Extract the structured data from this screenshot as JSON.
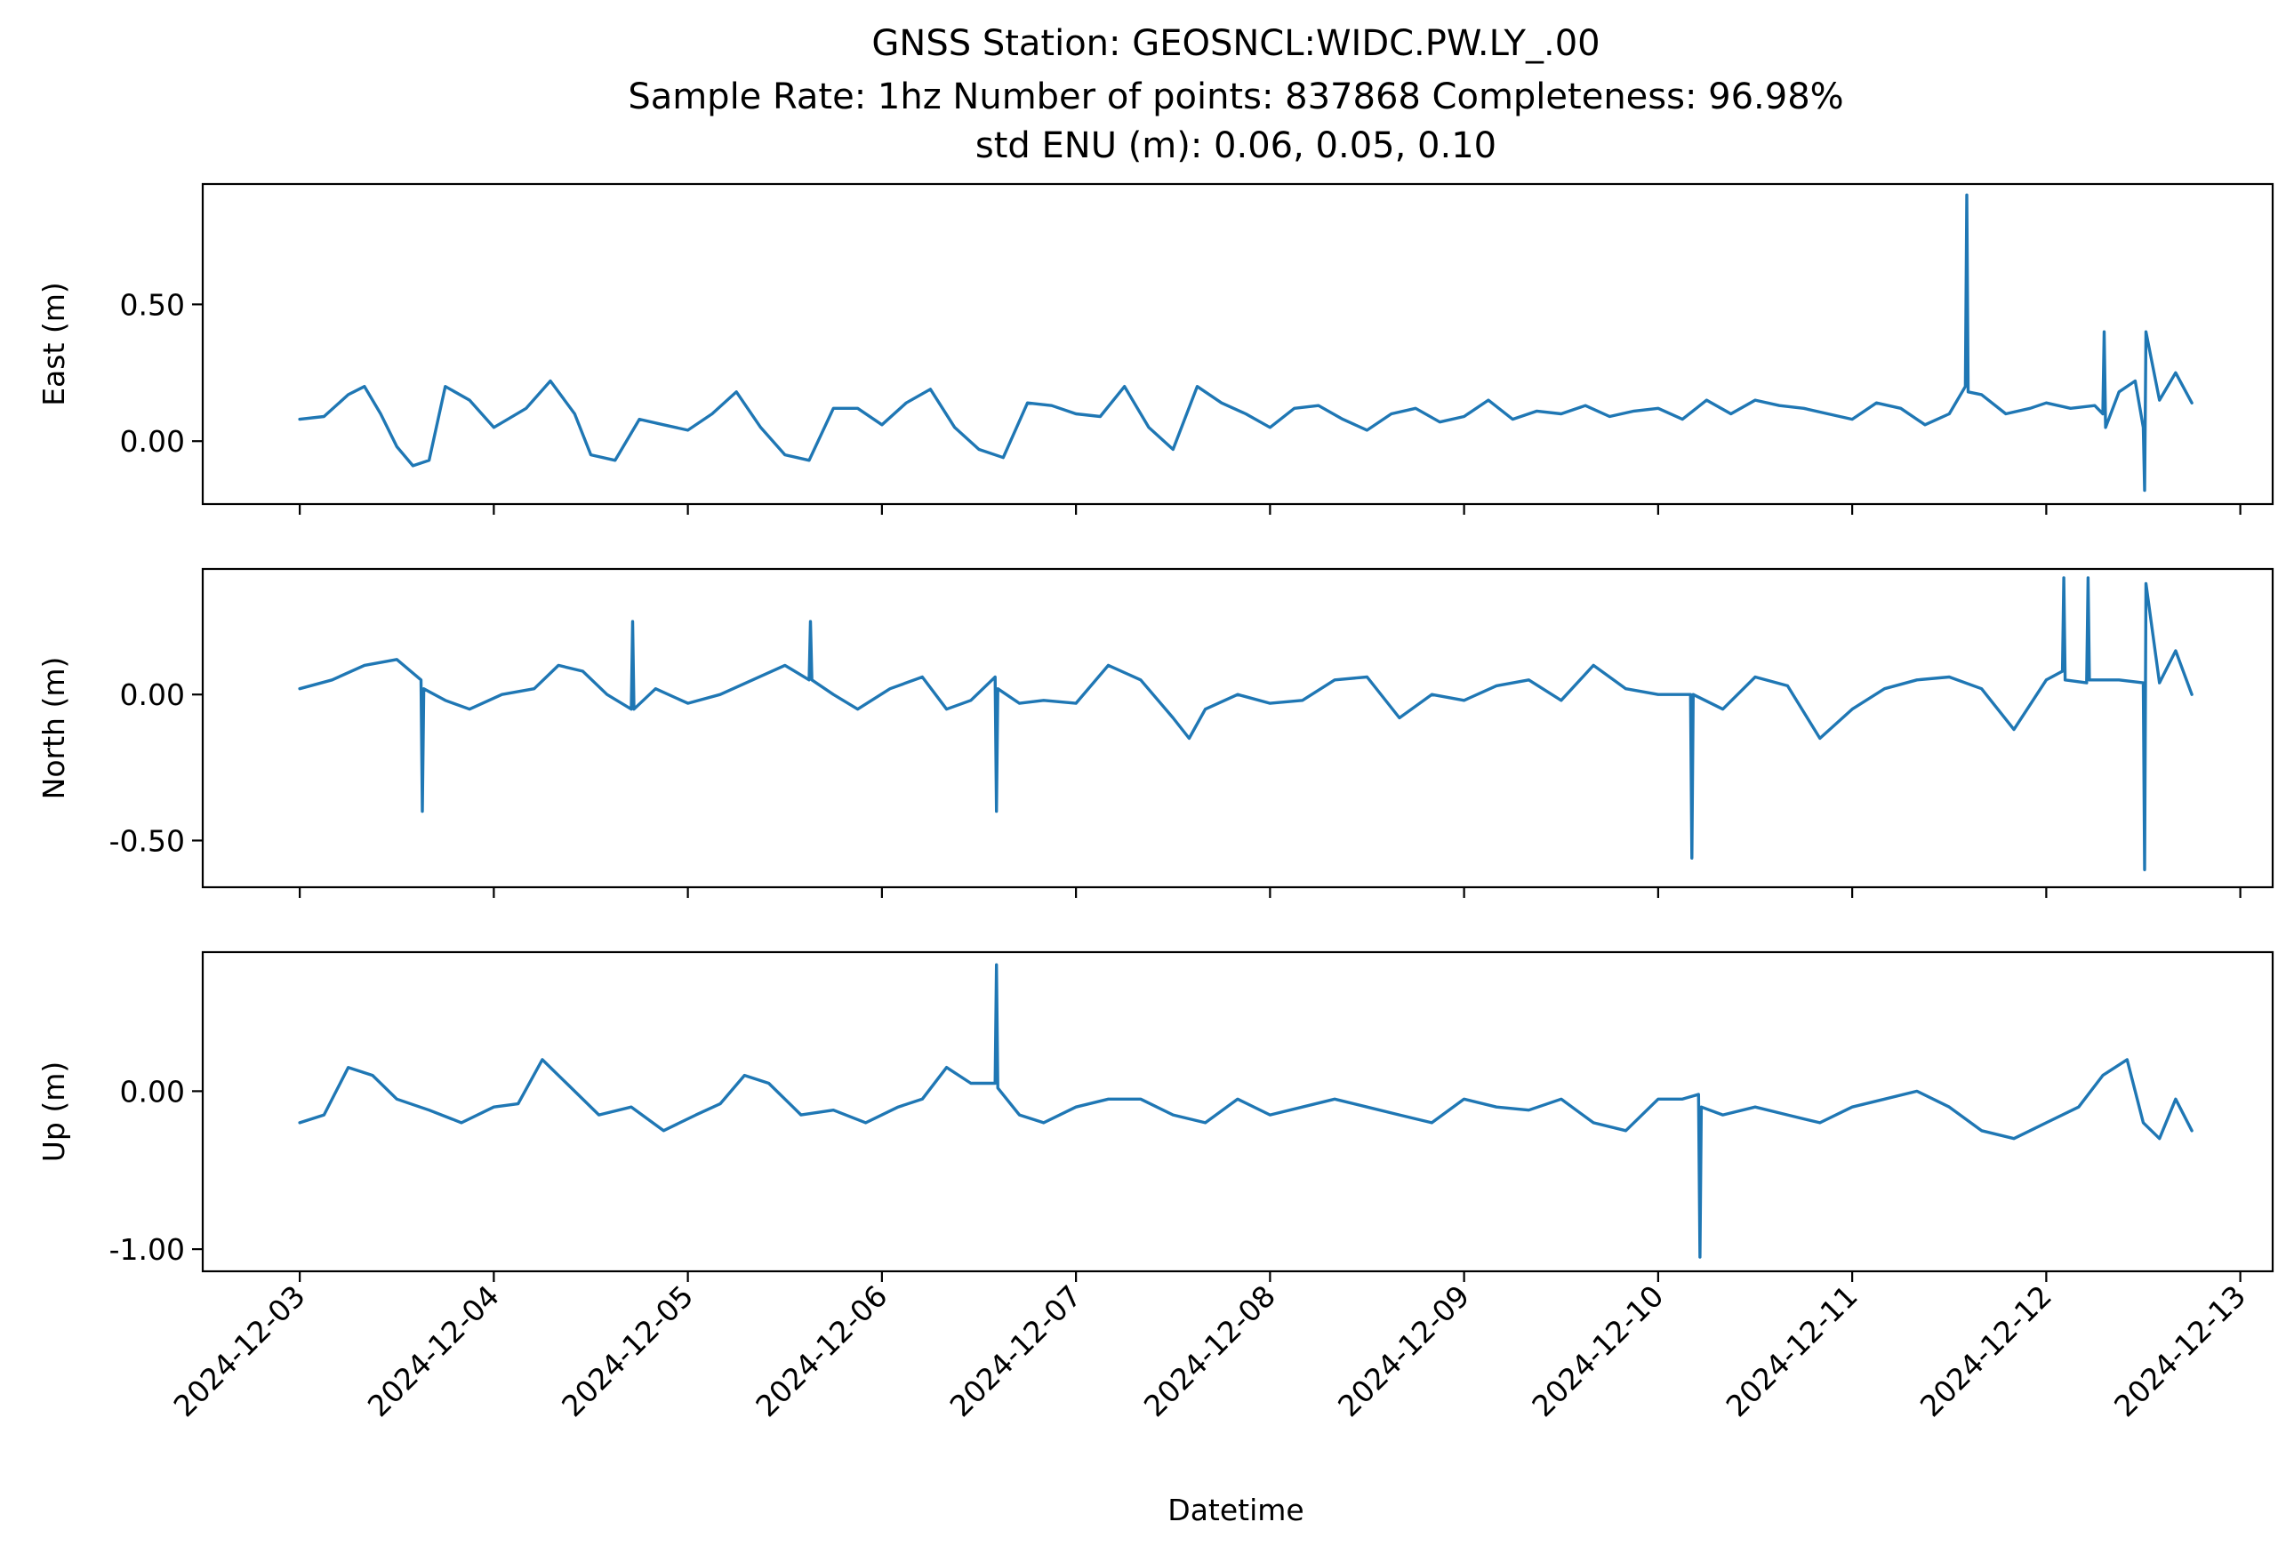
{
  "figure": {
    "title_lines": [
      "GNSS Station: GEOSNCL:WIDC.PW.LY_.00",
      "Sample Rate: 1hz   Number of points: 837868    Completeness:  96.98%",
      "std ENU (m):  0.06, 0.05, 0.10"
    ],
    "xlabel": "Datetime",
    "line_color": "#1f77b4"
  },
  "chart_data": [
    {
      "type": "line",
      "ylabel": "East (m)",
      "ylim": [
        -0.23,
        0.94
      ],
      "yticks": [
        0.0,
        0.5
      ],
      "ytick_labels": [
        "0.00",
        "0.50"
      ],
      "xlim": [
        "2024-12-02T12:00",
        "2024-12-13T04:00"
      ],
      "xticks": [
        "2024-12-03",
        "2024-12-04",
        "2024-12-05",
        "2024-12-06",
        "2024-12-07",
        "2024-12-08",
        "2024-12-09",
        "2024-12-10",
        "2024-12-11",
        "2024-12-12",
        "2024-12-13"
      ],
      "series": [
        {
          "x": [
            "2024-12-03T00:00",
            "2024-12-03T03:00",
            "2024-12-03T06:00",
            "2024-12-03T08:00",
            "2024-12-03T10:00",
            "2024-12-03T12:00",
            "2024-12-03T14:00",
            "2024-12-03T16:00",
            "2024-12-03T18:00",
            "2024-12-03T21:00",
            "2024-12-04T00:00",
            "2024-12-04T04:00",
            "2024-12-04T07:00",
            "2024-12-04T10:00",
            "2024-12-04T12:00",
            "2024-12-04T15:00",
            "2024-12-04T18:00",
            "2024-12-04T21:00",
            "2024-12-05T00:00",
            "2024-12-05T03:00",
            "2024-12-05T06:00",
            "2024-12-05T09:00",
            "2024-12-05T12:00",
            "2024-12-05T15:00",
            "2024-12-05T18:00",
            "2024-12-05T21:00",
            "2024-12-06T00:00",
            "2024-12-06T03:00",
            "2024-12-06T06:00",
            "2024-12-06T09:00",
            "2024-12-06T12:00",
            "2024-12-06T15:00",
            "2024-12-06T18:00",
            "2024-12-06T21:00",
            "2024-12-07T00:00",
            "2024-12-07T03:00",
            "2024-12-07T06:00",
            "2024-12-07T09:00",
            "2024-12-07T12:00",
            "2024-12-07T15:00",
            "2024-12-07T18:00",
            "2024-12-07T21:00",
            "2024-12-08T00:00",
            "2024-12-08T03:00",
            "2024-12-08T06:00",
            "2024-12-08T09:00",
            "2024-12-08T12:00",
            "2024-12-08T15:00",
            "2024-12-08T18:00",
            "2024-12-08T21:00",
            "2024-12-09T00:00",
            "2024-12-09T03:00",
            "2024-12-09T06:00",
            "2024-12-09T09:00",
            "2024-12-09T12:00",
            "2024-12-09T15:00",
            "2024-12-09T18:00",
            "2024-12-09T21:00",
            "2024-12-10T00:00",
            "2024-12-10T03:00",
            "2024-12-10T06:00",
            "2024-12-10T09:00",
            "2024-12-10T12:00",
            "2024-12-10T15:00",
            "2024-12-10T18:00",
            "2024-12-10T21:00",
            "2024-12-11T00:00",
            "2024-12-11T03:00",
            "2024-12-11T06:00",
            "2024-12-11T09:00",
            "2024-12-11T12:00",
            "2024-12-11T14:00",
            "2024-12-11T14:10",
            "2024-12-11T14:20",
            "2024-12-11T16:00",
            "2024-12-11T19:00",
            "2024-12-11T22:00",
            "2024-12-12T00:00",
            "2024-12-12T03:00",
            "2024-12-12T06:00",
            "2024-12-12T07:00",
            "2024-12-12T07:10",
            "2024-12-12T07:20",
            "2024-12-12T09:00",
            "2024-12-12T11:00",
            "2024-12-12T12:00",
            "2024-12-12T12:10",
            "2024-12-12T12:20",
            "2024-12-12T14:00",
            "2024-12-12T16:00",
            "2024-12-12T18:00"
          ],
          "y": [
            0.08,
            0.09,
            0.17,
            0.2,
            0.1,
            -0.02,
            -0.09,
            -0.07,
            0.2,
            0.15,
            0.05,
            0.12,
            0.22,
            0.1,
            -0.05,
            -0.07,
            0.08,
            0.06,
            0.04,
            0.1,
            0.18,
            0.05,
            -0.05,
            -0.07,
            0.12,
            0.12,
            0.06,
            0.14,
            0.19,
            0.05,
            -0.03,
            -0.06,
            0.14,
            0.13,
            0.1,
            0.09,
            0.2,
            0.05,
            -0.03,
            0.2,
            0.14,
            0.1,
            0.05,
            0.12,
            0.13,
            0.08,
            0.04,
            0.1,
            0.12,
            0.07,
            0.09,
            0.15,
            0.08,
            0.11,
            0.1,
            0.13,
            0.09,
            0.11,
            0.12,
            0.08,
            0.15,
            0.1,
            0.15,
            0.13,
            0.12,
            0.1,
            0.08,
            0.14,
            0.12,
            0.06,
            0.1,
            0.2,
            0.9,
            0.18,
            0.17,
            0.1,
            0.12,
            0.14,
            0.12,
            0.13,
            0.1,
            0.4,
            0.05,
            0.18,
            0.22,
            0.05,
            -0.18,
            0.4,
            0.15,
            0.25,
            0.14
          ]
        }
      ]
    },
    {
      "type": "line",
      "ylabel": "North (m)",
      "ylim": [
        -0.66,
        0.43
      ],
      "yticks": [
        -0.5,
        0.0
      ],
      "ytick_labels": [
        "-0.50",
        "0.00"
      ],
      "xlim": [
        "2024-12-02T12:00",
        "2024-12-13T04:00"
      ],
      "xticks": [
        "2024-12-03",
        "2024-12-04",
        "2024-12-05",
        "2024-12-06",
        "2024-12-07",
        "2024-12-08",
        "2024-12-09",
        "2024-12-10",
        "2024-12-11",
        "2024-12-12",
        "2024-12-13"
      ],
      "series": [
        {
          "x": [
            "2024-12-03T00:00",
            "2024-12-03T04:00",
            "2024-12-03T08:00",
            "2024-12-03T12:00",
            "2024-12-03T15:00",
            "2024-12-03T15:10",
            "2024-12-03T15:20",
            "2024-12-03T18:00",
            "2024-12-03T21:00",
            "2024-12-04T01:00",
            "2024-12-04T05:00",
            "2024-12-04T08:00",
            "2024-12-04T11:00",
            "2024-12-04T14:00",
            "2024-12-04T17:00",
            "2024-12-04T17:10",
            "2024-12-04T17:20",
            "2024-12-04T20:00",
            "2024-12-05T00:00",
            "2024-12-05T04:00",
            "2024-12-05T08:00",
            "2024-12-05T12:00",
            "2024-12-05T15:00",
            "2024-12-05T15:10",
            "2024-12-05T15:20",
            "2024-12-05T18:00",
            "2024-12-05T21:00",
            "2024-12-06T01:00",
            "2024-12-06T05:00",
            "2024-12-06T08:00",
            "2024-12-06T11:00",
            "2024-12-06T14:00",
            "2024-12-06T14:10",
            "2024-12-06T14:20",
            "2024-12-06T17:00",
            "2024-12-06T20:00",
            "2024-12-07T00:00",
            "2024-12-07T04:00",
            "2024-12-07T08:00",
            "2024-12-07T12:00",
            "2024-12-07T14:00",
            "2024-12-07T16:00",
            "2024-12-07T20:00",
            "2024-12-08T00:00",
            "2024-12-08T04:00",
            "2024-12-08T08:00",
            "2024-12-08T12:00",
            "2024-12-08T16:00",
            "2024-12-08T20:00",
            "2024-12-09T00:00",
            "2024-12-09T04:00",
            "2024-12-09T08:00",
            "2024-12-09T12:00",
            "2024-12-09T16:00",
            "2024-12-09T20:00",
            "2024-12-10T00:00",
            "2024-12-10T04:00",
            "2024-12-10T04:10",
            "2024-12-10T04:20",
            "2024-12-10T08:00",
            "2024-12-10T12:00",
            "2024-12-10T16:00",
            "2024-12-10T20:00",
            "2024-12-11T00:00",
            "2024-12-11T04:00",
            "2024-12-11T08:00",
            "2024-12-11T12:00",
            "2024-12-11T16:00",
            "2024-12-11T20:00",
            "2024-12-12T00:00",
            "2024-12-12T02:00",
            "2024-12-12T02:10",
            "2024-12-12T02:20",
            "2024-12-12T05:00",
            "2024-12-12T05:10",
            "2024-12-12T05:20",
            "2024-12-12T09:00",
            "2024-12-12T12:00",
            "2024-12-12T12:10",
            "2024-12-12T12:20",
            "2024-12-12T14:00",
            "2024-12-12T16:00",
            "2024-12-12T18:00"
          ],
          "y": [
            0.02,
            0.05,
            0.1,
            0.12,
            0.05,
            -0.4,
            0.02,
            -0.02,
            -0.05,
            0.0,
            0.02,
            0.1,
            0.08,
            0.0,
            -0.05,
            0.25,
            -0.05,
            0.02,
            -0.03,
            0.0,
            0.05,
            0.1,
            0.05,
            0.25,
            0.05,
            0.0,
            -0.05,
            0.02,
            0.06,
            -0.05,
            -0.02,
            0.06,
            -0.4,
            0.02,
            -0.03,
            -0.02,
            -0.03,
            0.1,
            0.05,
            -0.08,
            -0.15,
            -0.05,
            0.0,
            -0.03,
            -0.02,
            0.05,
            0.06,
            -0.08,
            0.0,
            -0.02,
            0.03,
            0.05,
            -0.02,
            0.1,
            0.02,
            0.0,
            0.0,
            -0.56,
            0.0,
            -0.05,
            0.06,
            0.03,
            -0.15,
            -0.05,
            0.02,
            0.05,
            0.06,
            0.02,
            -0.12,
            0.05,
            0.08,
            0.4,
            0.05,
            0.04,
            0.4,
            0.05,
            0.05,
            0.04,
            -0.6,
            0.38,
            0.04,
            0.15,
            0.0
          ]
        }
      ]
    },
    {
      "type": "line",
      "ylabel": "Up (m)",
      "ylim": [
        -1.14,
        0.88
      ],
      "yticks": [
        -1.0,
        0.0
      ],
      "ytick_labels": [
        "-1.00",
        "0.00"
      ],
      "xlim": [
        "2024-12-02T12:00",
        "2024-12-13T04:00"
      ],
      "xticks": [
        "2024-12-03",
        "2024-12-04",
        "2024-12-05",
        "2024-12-06",
        "2024-12-07",
        "2024-12-08",
        "2024-12-09",
        "2024-12-10",
        "2024-12-11",
        "2024-12-12",
        "2024-12-13"
      ],
      "series": [
        {
          "x": [
            "2024-12-03T00:00",
            "2024-12-03T03:00",
            "2024-12-03T06:00",
            "2024-12-03T09:00",
            "2024-12-03T12:00",
            "2024-12-03T16:00",
            "2024-12-03T20:00",
            "2024-12-04T00:00",
            "2024-12-04T03:00",
            "2024-12-04T06:00",
            "2024-12-04T09:00",
            "2024-12-04T13:00",
            "2024-12-04T17:00",
            "2024-12-04T21:00",
            "2024-12-05T01:00",
            "2024-12-05T04:00",
            "2024-12-05T07:00",
            "2024-12-05T10:00",
            "2024-12-05T14:00",
            "2024-12-05T18:00",
            "2024-12-05T22:00",
            "2024-12-06T02:00",
            "2024-12-06T05:00",
            "2024-12-06T08:00",
            "2024-12-06T11:00",
            "2024-12-06T14:00",
            "2024-12-06T14:10",
            "2024-12-06T14:20",
            "2024-12-06T17:00",
            "2024-12-06T20:00",
            "2024-12-07T00:00",
            "2024-12-07T04:00",
            "2024-12-07T08:00",
            "2024-12-07T12:00",
            "2024-12-07T16:00",
            "2024-12-07T20:00",
            "2024-12-08T00:00",
            "2024-12-08T04:00",
            "2024-12-08T08:00",
            "2024-12-08T12:00",
            "2024-12-08T16:00",
            "2024-12-08T20:00",
            "2024-12-09T00:00",
            "2024-12-09T04:00",
            "2024-12-09T08:00",
            "2024-12-09T12:00",
            "2024-12-09T16:00",
            "2024-12-09T20:00",
            "2024-12-10T00:00",
            "2024-12-10T03:00",
            "2024-12-10T05:00",
            "2024-12-10T05:10",
            "2024-12-10T05:20",
            "2024-12-10T08:00",
            "2024-12-10T12:00",
            "2024-12-10T16:00",
            "2024-12-10T20:00",
            "2024-12-11T00:00",
            "2024-12-11T04:00",
            "2024-12-11T08:00",
            "2024-12-11T12:00",
            "2024-12-11T16:00",
            "2024-12-11T20:00",
            "2024-12-12T00:00",
            "2024-12-12T04:00",
            "2024-12-12T07:00",
            "2024-12-12T10:00",
            "2024-12-12T12:00",
            "2024-12-12T14:00",
            "2024-12-12T16:00",
            "2024-12-12T18:00"
          ],
          "y": [
            -0.2,
            -0.15,
            0.15,
            0.1,
            -0.05,
            -0.12,
            -0.2,
            -0.1,
            -0.08,
            0.2,
            0.05,
            -0.15,
            -0.1,
            -0.25,
            -0.15,
            -0.08,
            0.1,
            0.05,
            -0.15,
            -0.12,
            -0.2,
            -0.1,
            -0.05,
            0.15,
            0.05,
            0.05,
            0.8,
            0.02,
            -0.15,
            -0.2,
            -0.1,
            -0.05,
            -0.05,
            -0.15,
            -0.2,
            -0.05,
            -0.15,
            -0.1,
            -0.05,
            -0.1,
            -0.15,
            -0.2,
            -0.05,
            -0.1,
            -0.12,
            -0.05,
            -0.2,
            -0.25,
            -0.05,
            -0.05,
            -0.02,
            -1.05,
            -0.1,
            -0.15,
            -0.1,
            -0.15,
            -0.2,
            -0.1,
            -0.05,
            0.0,
            -0.1,
            -0.25,
            -0.3,
            -0.2,
            -0.1,
            0.1,
            0.2,
            -0.2,
            -0.3,
            -0.05,
            -0.25
          ]
        }
      ]
    }
  ]
}
